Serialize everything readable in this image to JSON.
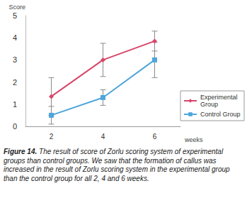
{
  "chart_data": {
    "type": "line",
    "y_label": "Score",
    "x_label": "weeks",
    "categories": [
      "2",
      "4",
      "6"
    ],
    "series": [
      {
        "name": "Experimental Group",
        "color": "#d8466a",
        "marker": "diamond",
        "values": [
          1.35,
          3.0,
          3.85
        ],
        "errors": [
          0.85,
          0.75,
          0.45
        ]
      },
      {
        "name": "Control Group",
        "color": "#4ea6dc",
        "marker": "square",
        "values": [
          0.5,
          1.3,
          3.0
        ],
        "errors": [
          0.4,
          0.35,
          0.8
        ]
      }
    ],
    "ylim": [
      0,
      5
    ],
    "yticks": [
      0,
      1,
      2,
      3,
      4,
      5
    ],
    "grid": false,
    "legend": "right",
    "caption": {
      "label": "Figure 14.",
      "text": "The result of score of Zorlu scoring system of experimental groups than control groups. We saw that the formation of callus was increased in the result of Zorlu scoring system in the experimental group than the control group for all 2, 4 and 6 weeks."
    }
  }
}
